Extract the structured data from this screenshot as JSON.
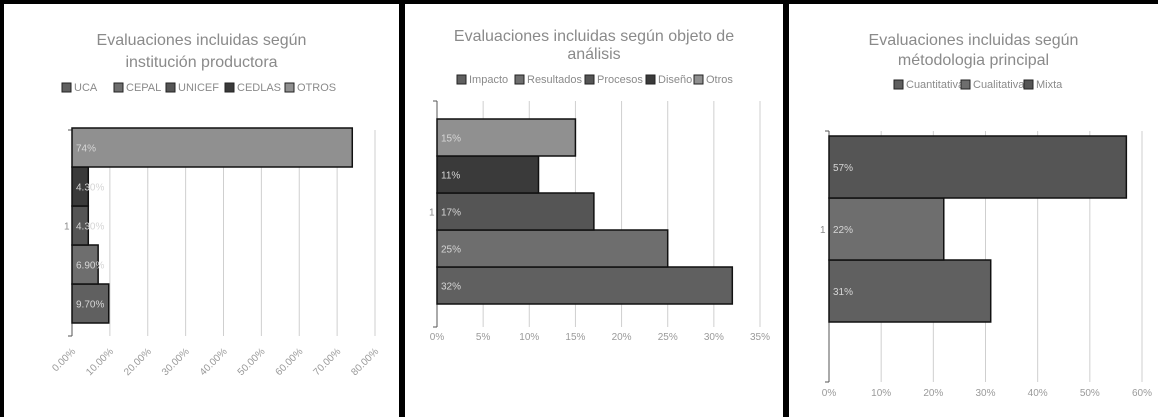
{
  "chart_data": [
    {
      "type": "bar",
      "orientation": "horizontal",
      "title_lines": [
        "Evaluaciones incluidas según",
        "institución productora"
      ],
      "categories": [
        "1"
      ],
      "series": [
        {
          "name": "UCA",
          "values": [
            9.7
          ],
          "label": "9.70%",
          "color": "#606060"
        },
        {
          "name": "CEPAL",
          "values": [
            6.9
          ],
          "label": "6.90%",
          "color": "#6e6e6e"
        },
        {
          "name": "UNICEF",
          "values": [
            4.3
          ],
          "label": "4.30%",
          "color": "#555555"
        },
        {
          "name": "CEDLAS",
          "values": [
            4.3
          ],
          "label": "4.30%",
          "color": "#3a3a3a"
        },
        {
          "name": "OTROS",
          "values": [
            74
          ],
          "label": "74%",
          "color": "#909090"
        }
      ],
      "xlim": [
        0,
        80
      ],
      "xticks": [
        "0.00%",
        "10.00%",
        "20.00%",
        "30.00%",
        "40.00%",
        "50.00%",
        "60.00%",
        "70.00%",
        "80.00%"
      ],
      "tick_rotation": -45,
      "grid": true,
      "legend": "top"
    },
    {
      "type": "bar",
      "orientation": "horizontal",
      "title_lines": [
        "Evaluaciones incluidas según objeto de",
        "análisis"
      ],
      "categories": [
        "1"
      ],
      "series": [
        {
          "name": "Impacto",
          "values": [
            32
          ],
          "label": "32%",
          "color": "#606060"
        },
        {
          "name": "Resultados",
          "values": [
            25
          ],
          "label": "25%",
          "color": "#6e6e6e"
        },
        {
          "name": "Procesos",
          "values": [
            17
          ],
          "label": "17%",
          "color": "#555555"
        },
        {
          "name": "Diseño",
          "values": [
            11
          ],
          "label": "11%",
          "color": "#3a3a3a"
        },
        {
          "name": "Otros",
          "values": [
            15
          ],
          "label": "15%",
          "color": "#909090"
        }
      ],
      "xlim": [
        0,
        35
      ],
      "xticks": [
        "0%",
        "5%",
        "10%",
        "15%",
        "20%",
        "25%",
        "30%",
        "35%"
      ],
      "tick_rotation": 0,
      "grid": true,
      "legend": "top"
    },
    {
      "type": "bar",
      "orientation": "horizontal",
      "title_lines": [
        "Evaluaciones incluidas según",
        "métodologia principal"
      ],
      "categories": [
        "1"
      ],
      "series": [
        {
          "name": "Cuantitativa",
          "values": [
            31
          ],
          "label": "31%",
          "color": "#606060"
        },
        {
          "name": "Cualitativa",
          "values": [
            22
          ],
          "label": "22%",
          "color": "#6e6e6e"
        },
        {
          "name": "Mixta",
          "values": [
            57
          ],
          "label": "57%",
          "color": "#555555"
        }
      ],
      "xlim": [
        0,
        60
      ],
      "xticks": [
        "0%",
        "10%",
        "20%",
        "30%",
        "40%",
        "50%",
        "60%"
      ],
      "tick_rotation": 0,
      "grid": true,
      "legend": "top"
    }
  ]
}
